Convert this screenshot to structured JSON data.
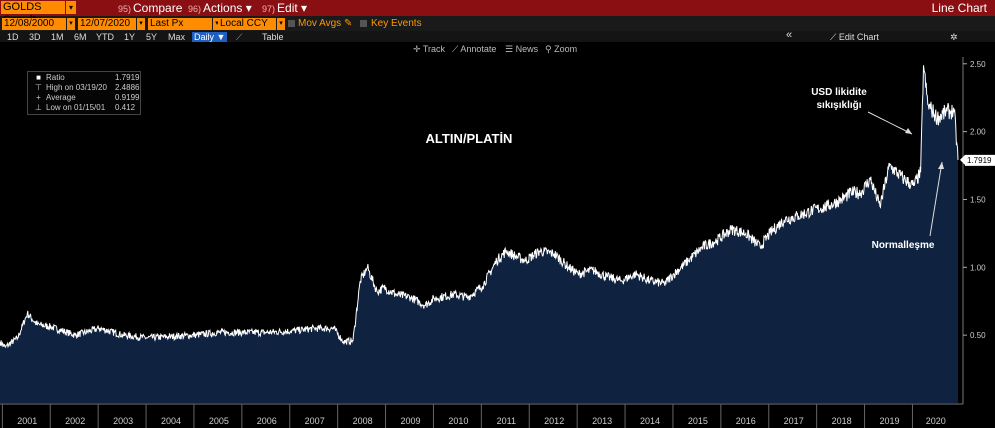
{
  "toolbar": {
    "ticker": "GOLDS Comdty",
    "compare_num": "95)",
    "compare_label": "Compare",
    "actions_num": "96)",
    "actions_label": "Actions",
    "edit_num": "97)",
    "edit_label": "Edit",
    "title": "Line Chart"
  },
  "fields": {
    "start_date": "12/08/2000",
    "end_date": "12/07/2020",
    "price_field": "Last Px",
    "currency": "Local CCY",
    "mov_avgs": "Mov Avgs",
    "key_events": "Key Events"
  },
  "ranges": [
    "1D",
    "3D",
    "1M",
    "6M",
    "YTD",
    "1Y",
    "5Y",
    "Max"
  ],
  "frequency": "Daily",
  "table_label": "Table",
  "edit_chart": "Edit Chart",
  "tools": {
    "track": "Track",
    "annotate": "Annotate",
    "news": "News",
    "zoom": "Zoom"
  },
  "legend": {
    "ratio_label": "Ratio",
    "ratio_value": "1.7919",
    "high_label": "High on 03/19/20",
    "high_value": "2.4886",
    "avg_label": "Average",
    "avg_value": "0.9199",
    "low_label": "Low on 01/15/01",
    "low_value": "0.412"
  },
  "colors": {
    "line": "#ffffff",
    "area": "#0f2240",
    "header": "#8a0f12",
    "field": "#ff8c00",
    "last_label_bg": "#ffffff"
  },
  "chart_data": {
    "type": "area",
    "title": "ALTIN/PLATİN",
    "annotations": [
      "USD likidite sıkışıklığı",
      "Normalleşme"
    ],
    "last_value_label": "1.7919",
    "x_ticks": [
      "2001",
      "2002",
      "2003",
      "2004",
      "2005",
      "2006",
      "2007",
      "2008",
      "2009",
      "2010",
      "2011",
      "2012",
      "2013",
      "2014",
      "2015",
      "2016",
      "2017",
      "2018",
      "2019",
      "2020"
    ],
    "y_ticks": [
      "0.50",
      "1.00",
      "1.50",
      "2.00",
      "2.50"
    ],
    "ylim": [
      0.0,
      2.55
    ],
    "x": [
      2000.93,
      2001.04,
      2001.3,
      2001.5,
      2001.7,
      2002.0,
      2002.5,
      2003.0,
      2003.5,
      2004.0,
      2004.5,
      2005.0,
      2005.5,
      2006.0,
      2006.5,
      2007.0,
      2007.5,
      2007.9,
      2008.1,
      2008.3,
      2008.45,
      2008.6,
      2008.8,
      2008.95,
      2009.2,
      2009.5,
      2009.8,
      2010.0,
      2010.4,
      2010.7,
      2011.0,
      2011.3,
      2011.5,
      2011.7,
      2011.9,
      2012.2,
      2012.5,
      2012.8,
      2013.0,
      2013.3,
      2013.6,
      2013.9,
      2014.2,
      2014.5,
      2014.8,
      2015.0,
      2015.3,
      2015.6,
      2015.9,
      2016.2,
      2016.5,
      2016.8,
      2017.0,
      2017.3,
      2017.6,
      2017.9,
      2018.2,
      2018.5,
      2018.7,
      2018.9,
      2019.1,
      2019.3,
      2019.5,
      2019.8,
      2020.0,
      2020.15,
      2020.21,
      2020.3,
      2020.5,
      2020.7,
      2020.85,
      2020.93
    ],
    "y": [
      0.45,
      0.412,
      0.48,
      0.66,
      0.58,
      0.56,
      0.5,
      0.55,
      0.5,
      0.48,
      0.49,
      0.5,
      0.52,
      0.52,
      0.52,
      0.53,
      0.55,
      0.55,
      0.45,
      0.46,
      0.9,
      1.0,
      0.82,
      0.85,
      0.8,
      0.78,
      0.72,
      0.77,
      0.8,
      0.78,
      0.86,
      1.05,
      1.12,
      1.08,
      1.05,
      1.12,
      1.1,
      1.0,
      0.95,
      0.98,
      0.93,
      0.9,
      0.95,
      0.9,
      0.88,
      0.95,
      1.05,
      1.15,
      1.2,
      1.28,
      1.25,
      1.15,
      1.25,
      1.35,
      1.38,
      1.42,
      1.45,
      1.5,
      1.55,
      1.55,
      1.65,
      1.45,
      1.75,
      1.65,
      1.6,
      1.7,
      2.4886,
      2.2,
      2.1,
      2.15,
      2.15,
      1.7919
    ]
  }
}
